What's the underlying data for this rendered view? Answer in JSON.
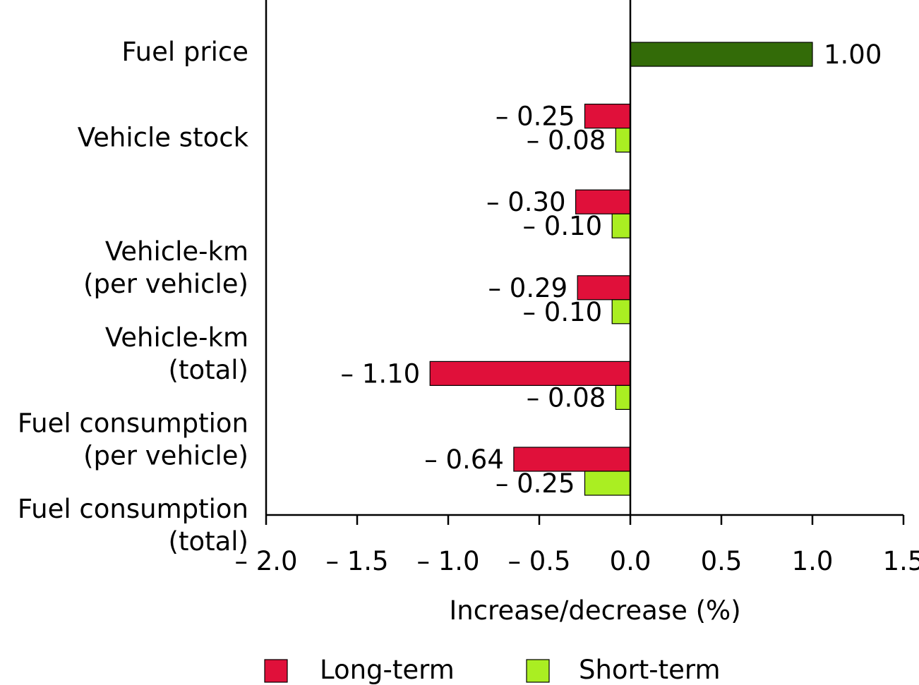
{
  "chart_data": {
    "type": "bar",
    "orientation": "horizontal",
    "categories": [
      [
        "Fuel price"
      ],
      [
        "Vehicle stock"
      ],
      [
        "Vehicle-km",
        "(per vehicle)"
      ],
      [
        "Vehicle-km",
        "(total)"
      ],
      [
        "Fuel consumption",
        "(per vehicle)"
      ],
      [
        "Fuel consumption",
        "(total)"
      ]
    ],
    "series": [
      {
        "name": "Long-term",
        "color": "#e0103a",
        "values": [
          1.0,
          -0.25,
          -0.3,
          -0.29,
          -1.1,
          -0.64
        ],
        "labels": [
          "1.00",
          "– 0.25",
          "– 0.30",
          "– 0.29",
          "– 1.10",
          "– 0.64"
        ]
      },
      {
        "name": "Short-term",
        "color": "#aaee22",
        "values": [
          null,
          -0.08,
          -0.1,
          -0.1,
          -0.08,
          -0.25
        ],
        "labels": [
          null,
          "– 0.08",
          "– 0.10",
          "– 0.10",
          "– 0.08",
          "– 0.25"
        ]
      }
    ],
    "fuel_price_color": "#336b08",
    "xlim": [
      -2.0,
      1.5
    ],
    "xticks": [
      -2.0,
      -1.5,
      -1.0,
      -0.5,
      0.0,
      0.5,
      1.0,
      1.5
    ],
    "xtick_labels": [
      "– 2.0",
      "– 1.5",
      "– 1.0",
      "– 0.5",
      "0.0",
      "0.5",
      "1.0",
      "1.5"
    ],
    "xlabel": "Increase/decrease (%)",
    "legend_position": "bottom"
  }
}
